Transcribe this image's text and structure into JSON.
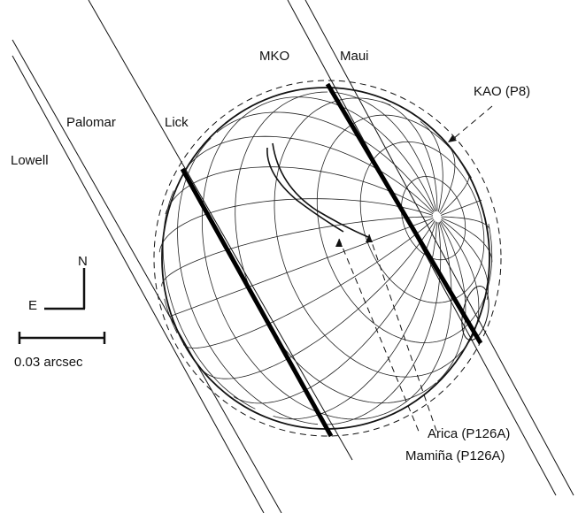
{
  "labels": {
    "lowell": "Lowell",
    "palomar": "Palomar",
    "lick": "Lick",
    "mko": "MKO",
    "maui": "Maui",
    "kao": "KAO (P8)",
    "arica": "Arica (P126A)",
    "mamina": "Mamiña (P126A)",
    "north": "N",
    "east": "E",
    "scale": "0.03 arcsec"
  },
  "colors": {
    "ink": "#111111",
    "background": "#ffffff"
  }
}
